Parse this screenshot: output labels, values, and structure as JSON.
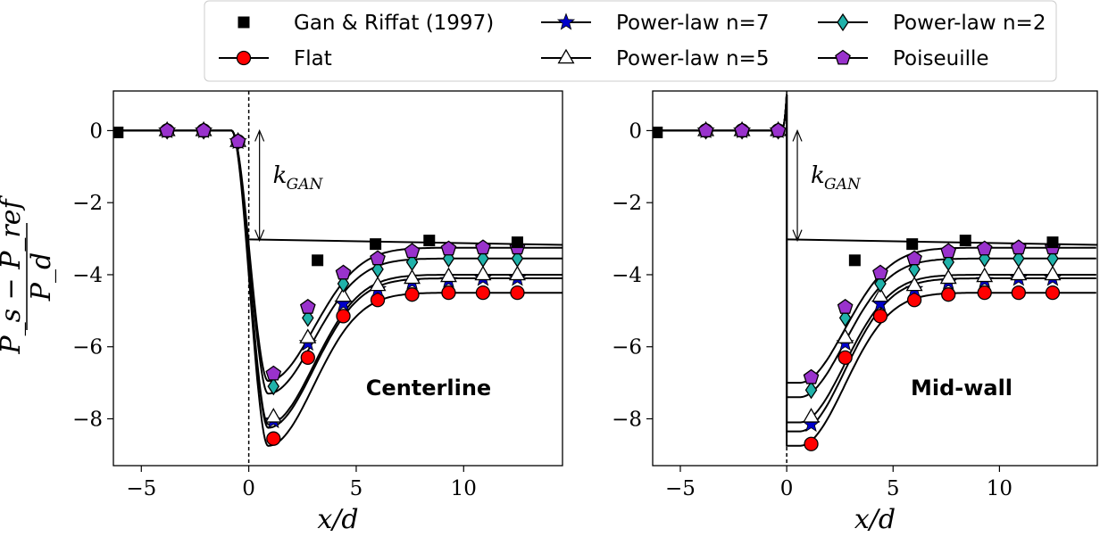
{
  "legend": {
    "items": [
      {
        "label": "Gan & Riffat (1997)",
        "marker": "square",
        "color": "#000000",
        "line": false
      },
      {
        "label": "Flat",
        "marker": "circle",
        "color": "#ff0000",
        "line": true
      },
      {
        "label": "Power-law n=7",
        "marker": "star",
        "color": "#0000cc",
        "line": true
      },
      {
        "label": "Power-law n=5",
        "marker": "triangle",
        "color": "#ffffff",
        "line": true
      },
      {
        "label": "Power-law n=2",
        "marker": "diamond",
        "color": "#20b2aa",
        "line": true
      },
      {
        "label": "Poiseuille",
        "marker": "pentagon",
        "color": "#9932cc",
        "line": true
      }
    ]
  },
  "y_label": {
    "numerator": "P_s − P_ref",
    "denominator": "P_d"
  },
  "chart_data": [
    {
      "type": "line",
      "panel_label": "Centerline",
      "annotation": {
        "text": "k",
        "subscript": "GAN",
        "x": 0.5,
        "from_y": 0.0,
        "to_y": -3.05
      },
      "xlabel": "x/d",
      "xlim": [
        -6.3,
        14.6
      ],
      "ylim": [
        -9.3,
        1.1
      ],
      "xticks": [
        -5,
        0,
        5,
        10
      ],
      "xtick_labels": [
        "−5",
        "0",
        "5",
        "10"
      ],
      "yticks": [
        0,
        -2,
        -4,
        -6,
        -8
      ],
      "ytick_labels": [
        "0",
        "−2",
        "−4",
        "−6",
        "−8"
      ],
      "vline_x": 0,
      "reference_line": {
        "x": [
          0,
          14.6
        ],
        "y": [
          -3.02,
          -3.17
        ]
      },
      "gan_riffat": {
        "x": [
          -6.1,
          3.2,
          5.9,
          8.4,
          12.5
        ],
        "y": [
          -0.05,
          -3.6,
          -3.15,
          -3.05,
          -3.1
        ]
      },
      "series": [
        {
          "name": "Flat",
          "x": [
            -3.8,
            -2.1,
            -0.5,
            1.15,
            2.75,
            4.4,
            6.0,
            7.6,
            9.3,
            10.9,
            12.5
          ],
          "y": [
            0,
            0,
            -0.3,
            -8.55,
            -6.3,
            -5.15,
            -4.7,
            -4.55,
            -4.5,
            -4.5,
            -4.5
          ],
          "fit": {
            "min_y": -8.75,
            "asym": -4.5
          }
        },
        {
          "name": "Power-law n=7",
          "x": [
            -3.8,
            -2.1,
            -0.5,
            1.15,
            2.75,
            4.4,
            6.0,
            7.6,
            9.3,
            10.9,
            12.5
          ],
          "y": [
            0,
            0,
            -0.3,
            -8.05,
            -5.9,
            -4.8,
            -4.4,
            -4.2,
            -4.15,
            -4.1,
            -4.1
          ],
          "fit": {
            "min_y": -8.25,
            "asym": -4.1
          }
        },
        {
          "name": "Power-law n=5",
          "x": [
            -3.8,
            -2.1,
            -0.5,
            1.15,
            2.75,
            4.4,
            6.0,
            7.6,
            9.3,
            10.9,
            12.5
          ],
          "y": [
            0,
            0,
            -0.3,
            -7.95,
            -5.75,
            -4.6,
            -4.3,
            -4.1,
            -4.05,
            -4.0,
            -4.0
          ],
          "fit": {
            "min_y": -8.15,
            "asym": -4.0
          }
        },
        {
          "name": "Power-law n=2",
          "x": [
            -3.8,
            -2.1,
            -0.5,
            1.15,
            2.75,
            4.4,
            6.0,
            7.6,
            9.3,
            10.9,
            12.5
          ],
          "y": [
            0,
            0,
            -0.3,
            -7.1,
            -5.2,
            -4.25,
            -3.85,
            -3.65,
            -3.55,
            -3.55,
            -3.55
          ],
          "fit": {
            "min_y": -7.3,
            "asym": -3.55
          }
        },
        {
          "name": "Poiseuille",
          "x": [
            -3.8,
            -2.1,
            -0.5,
            1.15,
            2.75,
            4.4,
            6.0,
            7.6,
            9.3,
            10.9,
            12.5
          ],
          "y": [
            0,
            0,
            -0.3,
            -6.75,
            -4.9,
            -3.95,
            -3.55,
            -3.35,
            -3.28,
            -3.25,
            -3.25
          ],
          "fit": {
            "min_y": -6.95,
            "asym": -3.25
          }
        }
      ]
    },
    {
      "type": "line",
      "panel_label": "Mid-wall",
      "annotation": {
        "text": "k",
        "subscript": "GAN",
        "x": 0.5,
        "from_y": 0.0,
        "to_y": -3.05
      },
      "xlabel": "x/d",
      "xlim": [
        -6.3,
        14.6
      ],
      "ylim": [
        -9.3,
        1.1
      ],
      "xticks": [
        -5,
        0,
        5,
        10
      ],
      "xtick_labels": [
        "−5",
        "0",
        "5",
        "10"
      ],
      "yticks": [
        0,
        -2,
        -4,
        -6,
        -8
      ],
      "ytick_labels": [
        "0",
        "−2",
        "−4",
        "−6",
        "−8"
      ],
      "vline_x": 0,
      "reference_line": {
        "x": [
          0,
          14.6
        ],
        "y": [
          -3.02,
          -3.17
        ]
      },
      "gan_riffat": {
        "x": [
          -6.1,
          3.2,
          5.9,
          8.4,
          12.5
        ],
        "y": [
          -0.05,
          -3.6,
          -3.15,
          -3.05,
          -3.1
        ]
      },
      "series": [
        {
          "name": "Flat",
          "x": [
            -3.8,
            -2.1,
            -0.4,
            1.15,
            2.75,
            4.4,
            6.0,
            7.6,
            9.3,
            10.9,
            12.5
          ],
          "y": [
            0,
            0,
            0,
            -8.7,
            -6.3,
            -5.15,
            -4.7,
            -4.55,
            -4.5,
            -4.5,
            -4.5
          ],
          "fit": {
            "start_y": -8.75,
            "asym": -4.5
          }
        },
        {
          "name": "Power-law n=7",
          "x": [
            -3.8,
            -2.1,
            -0.4,
            1.15,
            2.75,
            4.4,
            6.0,
            7.6,
            9.3,
            10.9,
            12.5
          ],
          "y": [
            0,
            0,
            0,
            -8.15,
            -5.9,
            -4.8,
            -4.4,
            -4.2,
            -4.15,
            -4.1,
            -4.1
          ],
          "fit": {
            "start_y": -8.35,
            "asym": -4.1
          }
        },
        {
          "name": "Power-law n=5",
          "x": [
            -3.8,
            -2.1,
            -0.4,
            1.15,
            2.75,
            4.4,
            6.0,
            7.6,
            9.3,
            10.9,
            12.5
          ],
          "y": [
            0,
            0,
            0,
            -7.95,
            -5.75,
            -4.6,
            -4.3,
            -4.1,
            -4.05,
            -4.0,
            -4.0
          ],
          "fit": {
            "start_y": -8.1,
            "asym": -4.0
          }
        },
        {
          "name": "Power-law n=2",
          "x": [
            -3.8,
            -2.1,
            -0.4,
            1.15,
            2.75,
            4.4,
            6.0,
            7.6,
            9.3,
            10.9,
            12.5
          ],
          "y": [
            0,
            0,
            0,
            -7.2,
            -5.2,
            -4.25,
            -3.85,
            -3.65,
            -3.55,
            -3.55,
            -3.55
          ],
          "fit": {
            "start_y": -7.4,
            "asym": -3.55
          }
        },
        {
          "name": "Poiseuille",
          "x": [
            -3.8,
            -2.1,
            -0.4,
            1.15,
            2.75,
            4.4,
            6.0,
            7.6,
            9.3,
            10.9,
            12.5
          ],
          "y": [
            0,
            0,
            0,
            -6.85,
            -4.9,
            -3.95,
            -3.55,
            -3.35,
            -3.28,
            -3.25,
            -3.25
          ],
          "fit": {
            "start_y": -7.0,
            "asym": -3.25
          }
        }
      ]
    }
  ]
}
